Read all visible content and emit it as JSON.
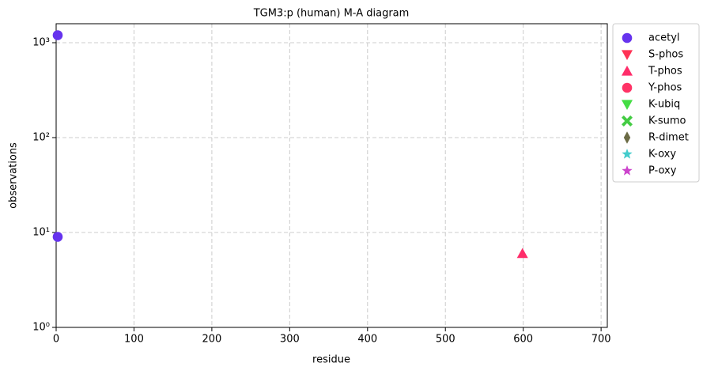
{
  "chart_data": {
    "type": "scatter",
    "title": "TGM3:p (human) M-A diagram",
    "xlabel": "residue",
    "ylabel": "observations",
    "xlim": [
      0,
      708
    ],
    "xticks": [
      0,
      100,
      200,
      300,
      400,
      500,
      600,
      700
    ],
    "ylim": [
      1,
      1585
    ],
    "yscale": "log",
    "yticks": [
      {
        "value": 1,
        "label": "10⁰"
      },
      {
        "value": 10,
        "label": "10¹"
      },
      {
        "value": 100,
        "label": "10²"
      },
      {
        "value": 1000,
        "label": "10³"
      }
    ],
    "grid": true,
    "legend": "outside-right",
    "series": [
      {
        "name": "acetyl",
        "color": "#6633ee",
        "marker": "circle",
        "x": [
          2,
          2
        ],
        "values": [
          1200,
          9
        ]
      },
      {
        "name": "S-phos",
        "color": "#ff3355",
        "marker": "triangle-down",
        "x": [],
        "values": []
      },
      {
        "name": "T-phos",
        "color": "#ff2d6a",
        "marker": "triangle-up",
        "x": [
          599
        ],
        "values": [
          6
        ]
      },
      {
        "name": "Y-phos",
        "color": "#ff3366",
        "marker": "circle",
        "x": [],
        "values": []
      },
      {
        "name": "K-ubiq",
        "color": "#44dd44",
        "marker": "triangle-down",
        "x": [],
        "values": []
      },
      {
        "name": "K-sumo",
        "color": "#44cc44",
        "marker": "x",
        "x": [],
        "values": []
      },
      {
        "name": "R-dimet",
        "color": "#6b6b45",
        "marker": "diamond",
        "x": [],
        "values": []
      },
      {
        "name": "K-oxy",
        "color": "#44cccc",
        "marker": "star",
        "x": [],
        "values": []
      },
      {
        "name": "P-oxy",
        "color": "#cc44cc",
        "marker": "star",
        "x": [],
        "values": []
      }
    ]
  }
}
